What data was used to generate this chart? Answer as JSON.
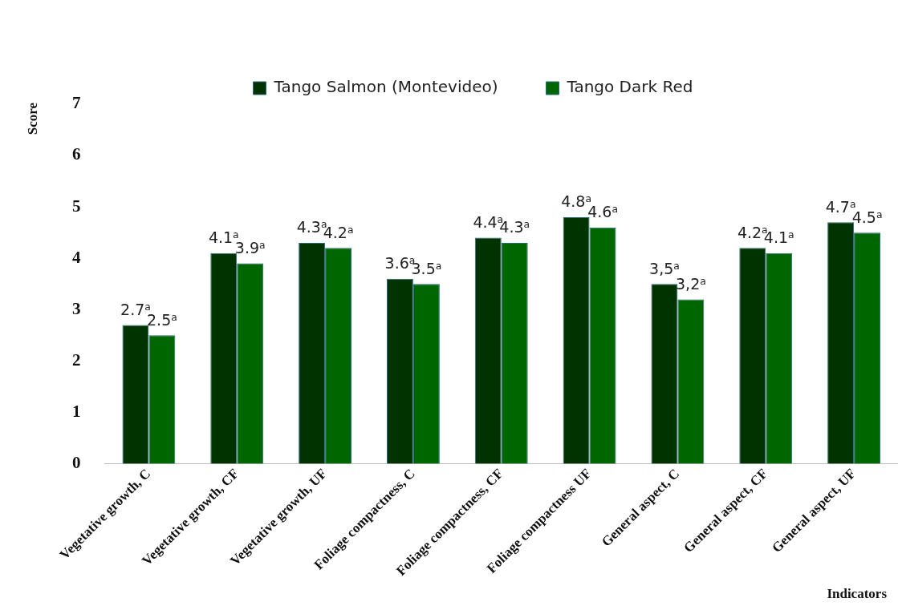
{
  "chart_data": {
    "type": "bar",
    "xlabel": "Indicators",
    "ylabel": "Score",
    "categories": [
      "Vegetative growth, C",
      "Vegetative growth, CF",
      "Vegetative growth, UF",
      "Foliage compactness, C",
      "Foliage compactness, CF",
      "Foliage compactness UF",
      "General aspect, C",
      "General aspect, CF",
      "General aspect, UF"
    ],
    "series": [
      {
        "name": "Tango Salmon (Montevideo)",
        "color": "#003300",
        "values": [
          2.7,
          4.1,
          4.3,
          3.6,
          4.4,
          4.8,
          3.5,
          4.2,
          4.7
        ],
        "value_labels": [
          "2.7$^{a}$",
          "4.1$^{a}$",
          "4.3$^{a}$",
          "3.6$^{a}$",
          "4.4$^{a}$",
          "4.8$^{a}$",
          "3,5$^{a}$",
          "4.2$^{a}$",
          "4.7$^{a}$"
        ]
      },
      {
        "name": "Tango Dark Red",
        "color": "#006600",
        "values": [
          2.5,
          3.9,
          4.2,
          3.5,
          4.3,
          4.6,
          3.2,
          4.1,
          4.5
        ],
        "value_labels": [
          "2.5$^{a}$",
          "3.9$^{a}$",
          "4.2$^{a}$",
          "3.5$^{a}$",
          "4.3$^{a}$",
          "4.6$^{a}$",
          "3,2$^{a}$",
          "4.1$^{a}$",
          "4.5$^{a}$"
        ]
      }
    ],
    "ylim": [
      0,
      7
    ],
    "yticks": [
      0,
      1,
      2,
      3,
      4,
      5,
      6,
      7
    ],
    "grid": false,
    "legend": "top"
  }
}
